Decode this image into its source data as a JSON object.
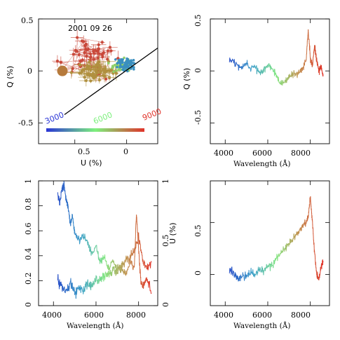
{
  "chart_data": [
    {
      "type": "scatter",
      "panel": "top-left",
      "title": "2001 09 26",
      "xlabel": "U (%)",
      "ylabel": "Q (%)",
      "xlim": [
        0.85,
        -0.3
      ],
      "ylim": [
        -0.7,
        0.5
      ],
      "xticks": [
        "0.5",
        "0"
      ],
      "yticks": [
        "-0.5",
        "0",
        "0.5"
      ],
      "colorbar_labels": [
        "3000",
        "6000",
        "9000"
      ],
      "colorbar_colors": [
        "#2a35d6",
        "#7df07d",
        "#e0332a"
      ],
      "fit_line": [
        [
          0.6,
          -0.42
        ],
        [
          -0.3,
          0.22
        ]
      ],
      "big_dot": {
        "x": 0.62,
        "y": 0.0
      },
      "clusters": [
        {
          "color": "#c9483a",
          "cx": 0.35,
          "cy": 0.15,
          "sx": 0.25,
          "sy": 0.18,
          "n": 55,
          "err": true
        },
        {
          "color": "#b0903f",
          "cx": 0.28,
          "cy": 0.0,
          "sx": 0.18,
          "sy": 0.09,
          "n": 60,
          "err": true
        },
        {
          "color": "#8fd06a",
          "cx": 0.05,
          "cy": 0.05,
          "sx": 0.1,
          "sy": 0.07,
          "n": 60,
          "err": false
        },
        {
          "color": "#3a8fbf",
          "cx": 0.0,
          "cy": 0.06,
          "sx": 0.09,
          "sy": 0.06,
          "n": 70,
          "err": false
        }
      ]
    },
    {
      "type": "line",
      "panel": "top-right",
      "xlabel": "Wavelength (Å)",
      "ylabel": "Q (%)",
      "xlim": [
        3300,
        8900
      ],
      "ylim": [
        -0.7,
        0.5
      ],
      "xticks": [
        "4000",
        "6000",
        "8000"
      ],
      "yticks": [
        "-0.5",
        "0",
        "0.5"
      ],
      "series": [
        {
          "x": [
            4200,
            4400,
            4600,
            4800,
            5000,
            5200,
            5400,
            5600,
            5800,
            6000,
            6200,
            6400,
            6600,
            6800,
            7000,
            7200,
            7400,
            7600,
            7800,
            7900,
            8000,
            8100,
            8200,
            8300,
            8400,
            8500,
            8600
          ],
          "y": [
            0.12,
            0.08,
            0.05,
            0.03,
            0.07,
            0.02,
            0.05,
            -0.02,
            0.0,
            0.06,
            0.02,
            -0.05,
            -0.12,
            -0.1,
            -0.06,
            -0.04,
            -0.02,
            0.02,
            0.1,
            0.4,
            0.12,
            0.05,
            0.25,
            0.1,
            0.0,
            0.05,
            -0.05
          ]
        }
      ]
    },
    {
      "type": "line",
      "panel": "bottom-left",
      "xlabel": "Wavelength (Å)",
      "ylabel": "",
      "ylabel_right": "U (%)",
      "xlim": [
        3300,
        8900
      ],
      "ylim": [
        0,
        1
      ],
      "ylim_right": [
        0,
        1
      ],
      "xticks": [
        "4000",
        "6000",
        "8000"
      ],
      "yticks": [
        "0",
        "0.2",
        "0.4",
        "0.6",
        "0.8",
        "1"
      ],
      "yticks_right": [
        "0",
        "0.5",
        "1"
      ],
      "series": [
        {
          "x": [
            4200,
            4300,
            4400,
            4500,
            4600,
            4700,
            4800,
            4900,
            5000,
            5200,
            5400,
            5600,
            5800,
            6000,
            6200,
            6400,
            6600,
            6800,
            7000,
            7200,
            7400,
            7600,
            7800,
            7900,
            8000,
            8100,
            8200,
            8400,
            8600
          ],
          "y": [
            0.9,
            0.82,
            0.94,
            0.96,
            0.85,
            0.78,
            0.65,
            0.72,
            0.58,
            0.52,
            0.56,
            0.5,
            0.42,
            0.48,
            0.35,
            0.4,
            0.3,
            0.36,
            0.28,
            0.3,
            0.25,
            0.35,
            0.3,
            0.75,
            0.45,
            0.2,
            0.15,
            0.22,
            0.1
          ]
        },
        {
          "x": [
            4200,
            4400,
            4600,
            4800,
            5000,
            5200,
            5400,
            5600,
            5800,
            6000,
            6200,
            6400,
            6600,
            6800,
            7000,
            7200,
            7400,
            7600,
            7800,
            8000,
            8200,
            8400,
            8600
          ],
          "y": [
            0.2,
            0.15,
            0.12,
            0.18,
            0.1,
            0.14,
            0.12,
            0.18,
            0.16,
            0.22,
            0.2,
            0.24,
            0.26,
            0.28,
            0.3,
            0.32,
            0.36,
            0.4,
            0.45,
            0.55,
            0.35,
            0.3,
            0.35
          ]
        }
      ]
    },
    {
      "type": "line",
      "panel": "bottom-right",
      "xlabel": "Wavelength (Å)",
      "ylabel": "",
      "xlim": [
        3300,
        8900
      ],
      "ylim": [
        -0.3,
        0.9
      ],
      "xticks": [
        "4000",
        "6000",
        "8000"
      ],
      "yticks": [
        "0",
        "0.5"
      ],
      "series": [
        {
          "x": [
            4200,
            4400,
            4600,
            4800,
            5000,
            5200,
            5400,
            5600,
            5800,
            6000,
            6200,
            6400,
            6600,
            6800,
            7000,
            7200,
            7400,
            7600,
            7800,
            7900,
            8000,
            8100,
            8200,
            8300,
            8400,
            8500,
            8600
          ],
          "y": [
            0.05,
            0.02,
            -0.05,
            0.0,
            -0.02,
            0.03,
            0.0,
            0.05,
            0.03,
            0.1,
            0.08,
            0.15,
            0.2,
            0.25,
            0.3,
            0.35,
            0.4,
            0.45,
            0.5,
            0.55,
            0.75,
            0.5,
            0.2,
            0.0,
            -0.05,
            0.08,
            0.12
          ]
        }
      ]
    }
  ]
}
